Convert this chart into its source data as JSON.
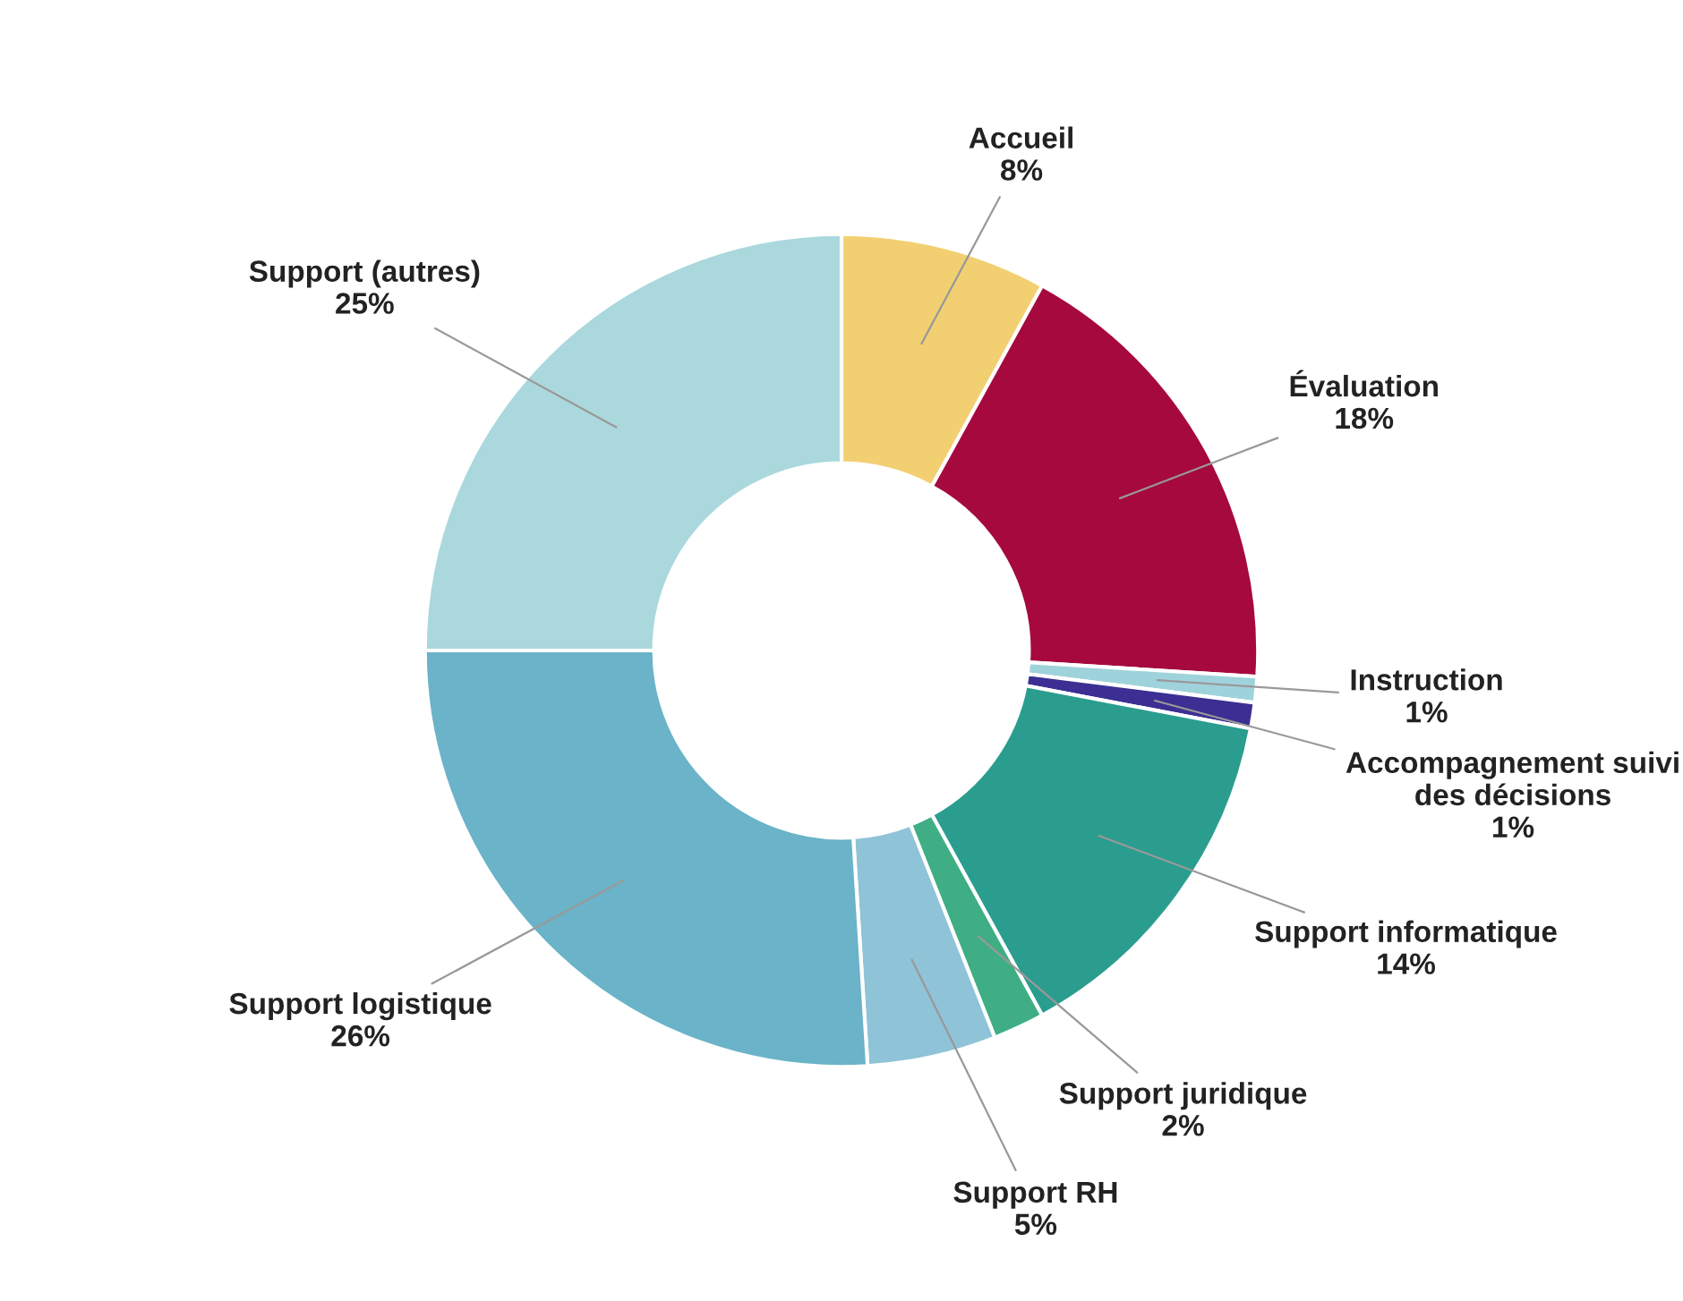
{
  "chart_data": {
    "type": "donut",
    "categories": [
      "Accueil",
      "Évaluation",
      "Instruction",
      "Accompagnement suivi des décisions",
      "Support informatique",
      "Support juridique",
      "Support RH",
      "Support logistique",
      "Support (autres)"
    ],
    "values": [
      8,
      18,
      1,
      1,
      14,
      2,
      5,
      26,
      25
    ],
    "value_labels": [
      "8%",
      "18%",
      "1%",
      "1%",
      "14%",
      "2%",
      "5%",
      "26%",
      "25%"
    ],
    "colors": [
      "#f2d072",
      "#a6093d",
      "#9fd3dc",
      "#3b2f93",
      "#2a9d8f",
      "#3fae84",
      "#8fc3d8",
      "#6ab3c8",
      "#aad8dd"
    ]
  }
}
